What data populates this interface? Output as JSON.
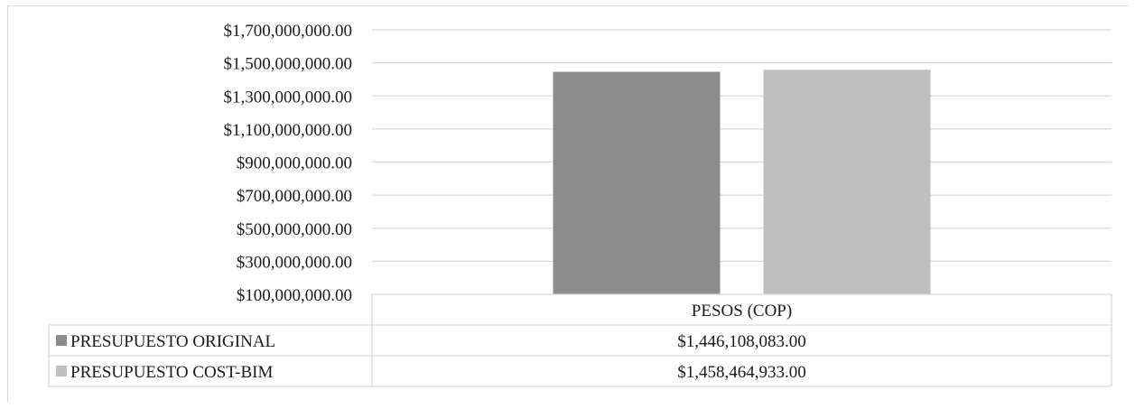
{
  "chart_data": {
    "type": "bar",
    "categories": [
      "PESOS (COP)"
    ],
    "series": [
      {
        "name": "PRESUPUESTO ORIGINAL",
        "values": [
          1446108083.0
        ],
        "value_labels": [
          "$1,446,108,083.00"
        ],
        "color": "#8c8c8c"
      },
      {
        "name": "PRESUPUESTO COST-BIM",
        "values": [
          1458464933.0
        ],
        "value_labels": [
          "$1,458,464,933.00"
        ],
        "color": "#bfbfbf"
      }
    ],
    "ylim": [
      100000000,
      1700000000
    ],
    "yticks": [
      100000000,
      300000000,
      500000000,
      700000000,
      900000000,
      1100000000,
      1300000000,
      1500000000,
      1700000000
    ],
    "ytick_labels": [
      "$100,000,000.00",
      "$300,000,000.00",
      "$500,000,000.00",
      "$700,000,000.00",
      "$900,000,000.00",
      "$1,100,000,000.00",
      "$1,300,000,000.00",
      "$1,500,000,000.00",
      "$1,700,000,000.00"
    ],
    "grid": true,
    "legend": "data-table",
    "gridline_color": "#d9d9d9",
    "border_color": "#d9d9d9"
  }
}
